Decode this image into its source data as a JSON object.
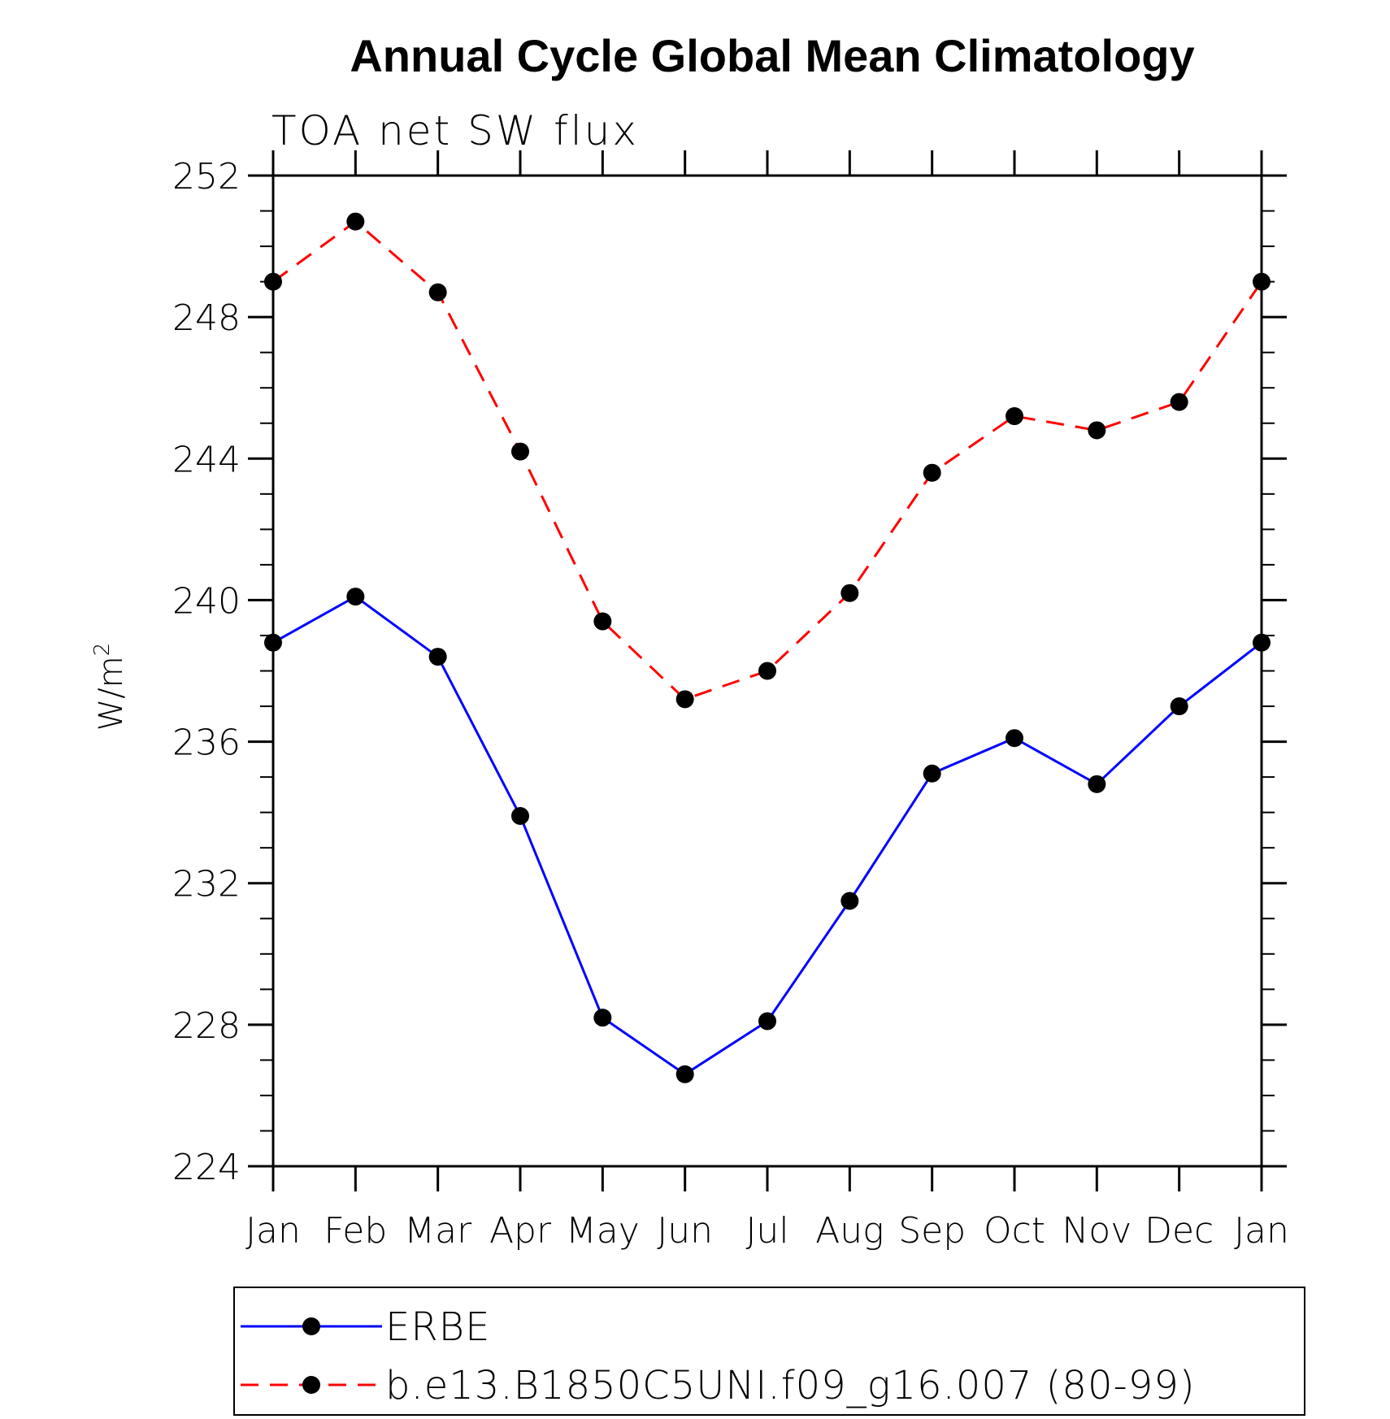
{
  "chart_data": {
    "type": "line",
    "title": "Annual Cycle Global Mean Climatology",
    "subtitle": "TOA net SW flux",
    "xlabel": "",
    "ylabel": "W/m",
    "ylabel_superscript": "2",
    "categories": [
      "Jan",
      "Feb",
      "Mar",
      "Apr",
      "May",
      "Jun",
      "Jul",
      "Aug",
      "Sep",
      "Oct",
      "Nov",
      "Dec",
      "Jan"
    ],
    "ylim": [
      224,
      252
    ],
    "yticks": [
      224,
      228,
      232,
      236,
      240,
      244,
      248,
      252
    ],
    "yticks_minor_step": 1,
    "grid": false,
    "legend_position": "bottom",
    "series": [
      {
        "name": "ERBE",
        "color": "#0000ff",
        "line_style": "solid",
        "marker": "filled-circle",
        "values": [
          238.8,
          240.1,
          238.4,
          233.9,
          228.2,
          226.6,
          228.1,
          231.5,
          235.1,
          236.1,
          234.8,
          237.0,
          238.8
        ]
      },
      {
        "name": "b.e13.B1850C5UNI.f09_g16.007 (80-99)",
        "color": "#ff0000",
        "line_style": "dashed",
        "marker": "filled-circle",
        "values": [
          249.0,
          250.7,
          248.7,
          244.2,
          239.4,
          237.2,
          238.0,
          240.2,
          243.6,
          245.2,
          244.8,
          245.6,
          249.0
        ]
      }
    ]
  }
}
